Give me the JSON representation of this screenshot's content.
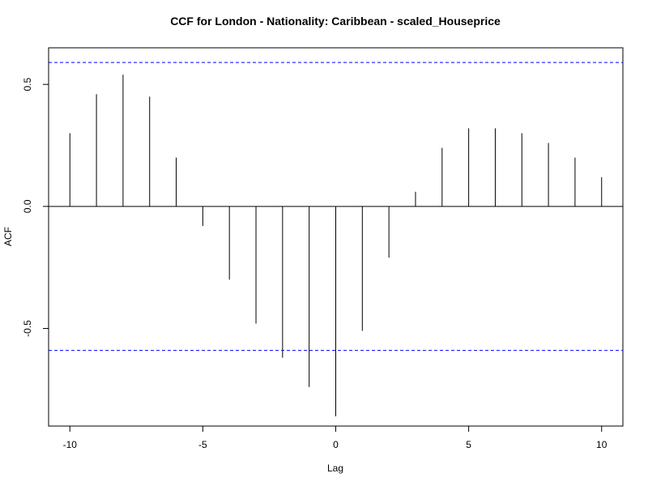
{
  "chart_data": {
    "type": "bar",
    "title": "CCF for London - Nationality: Caribbean - scaled_Houseprice",
    "xlabel": "Lag",
    "ylabel": "ACF",
    "xlim": [
      -10.8,
      10.8
    ],
    "ylim": [
      -0.9,
      0.65
    ],
    "x_ticks": [
      -10,
      -5,
      0,
      5,
      10
    ],
    "x_tick_labels": [
      "-10",
      "-5",
      "0",
      "5",
      "10"
    ],
    "y_ticks": [
      -0.5,
      0.0,
      0.5
    ],
    "y_tick_labels": [
      "-0.5",
      "0.0",
      "0.5"
    ],
    "x": [
      -10,
      -9,
      -8,
      -7,
      -6,
      -5,
      -4,
      -3,
      -2,
      -1,
      0,
      1,
      2,
      3,
      4,
      5,
      6,
      7,
      8,
      9,
      10
    ],
    "values": [
      0.3,
      0.46,
      0.54,
      0.45,
      0.2,
      -0.08,
      -0.3,
      -0.48,
      -0.62,
      -0.74,
      -0.86,
      -0.51,
      -0.21,
      0.06,
      0.24,
      0.32,
      0.32,
      0.3,
      0.26,
      0.2,
      0.12
    ],
    "confidence_bounds": [
      0.59,
      -0.59
    ],
    "confidence_color": "#0000ff",
    "grid": false
  }
}
